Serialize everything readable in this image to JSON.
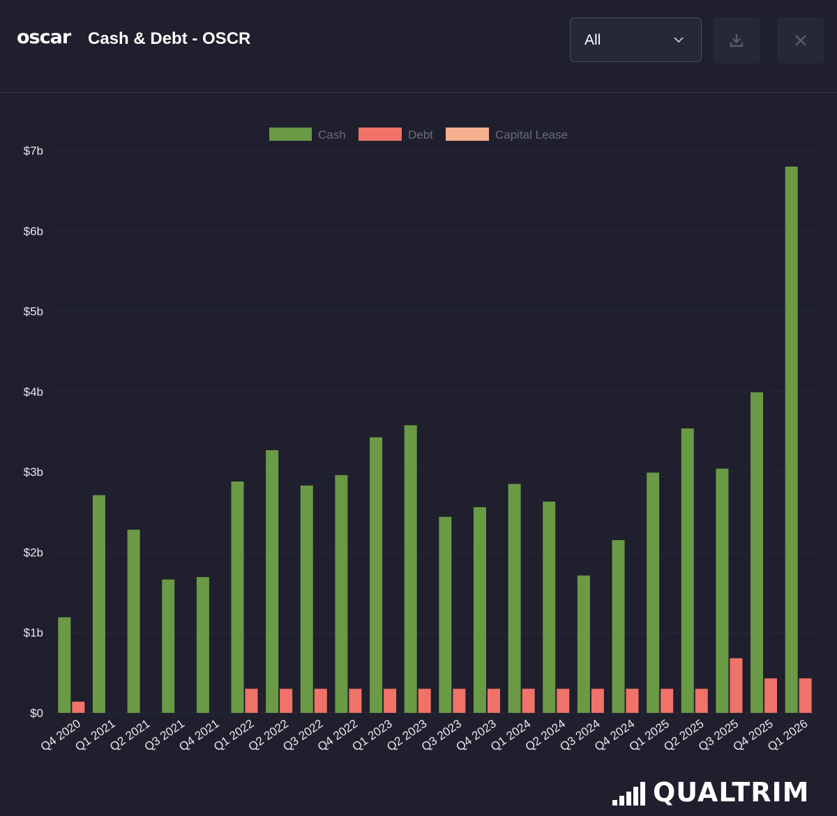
{
  "header": {
    "logo_text": "oscar",
    "title": "Cash & Debt - OSCR",
    "period_select": {
      "value": "All"
    },
    "download_icon": "download-icon",
    "close_icon": "close-icon"
  },
  "brand": {
    "text": "QUALTRIM"
  },
  "colors": {
    "cash": "#6a9a46",
    "debt": "#f07268",
    "capital_lease": "#f5b190",
    "background": "#1f1f2d",
    "grid": "#2a2c3b"
  },
  "chart_data": {
    "type": "bar",
    "legend_position": "top-center",
    "grid": true,
    "ylim": [
      0,
      7
    ],
    "y_ticks": [
      "$0",
      "$1b",
      "$2b",
      "$3b",
      "$4b",
      "$5b",
      "$6b",
      "$7b"
    ],
    "categories": [
      "Q4 2020",
      "Q1 2021",
      "Q2 2021",
      "Q3 2021",
      "Q4 2021",
      "Q1 2022",
      "Q2 2022",
      "Q3 2022",
      "Q4 2022",
      "Q1 2023",
      "Q2 2023",
      "Q3 2023",
      "Q4 2023",
      "Q1 2024",
      "Q2 2024",
      "Q3 2024",
      "Q4 2024",
      "Q1 2025",
      "Q2 2025",
      "Q3 2025",
      "Q4 2025",
      "Q1 2026"
    ],
    "series": [
      {
        "name": "Cash",
        "color": "#6a9a46",
        "values": [
          1.19,
          2.71,
          2.28,
          1.66,
          1.69,
          2.88,
          3.27,
          2.83,
          2.96,
          3.43,
          3.58,
          2.44,
          2.56,
          2.85,
          2.63,
          1.71,
          2.15,
          2.99,
          3.54,
          3.04,
          3.99,
          6.8
        ]
      },
      {
        "name": "Debt",
        "color": "#f07268",
        "values": [
          0.14,
          0,
          0,
          0,
          0,
          0.3,
          0.3,
          0.3,
          0.3,
          0.3,
          0.3,
          0.3,
          0.3,
          0.3,
          0.3,
          0.3,
          0.3,
          0.3,
          0.3,
          0.68,
          0.43,
          0.43
        ]
      },
      {
        "name": "Capital Lease",
        "color": "#f5b190",
        "values": [
          0,
          0,
          0,
          0,
          0,
          0,
          0,
          0,
          0,
          0,
          0,
          0,
          0,
          0,
          0,
          0,
          0,
          0,
          0,
          0,
          0,
          0
        ]
      }
    ]
  }
}
